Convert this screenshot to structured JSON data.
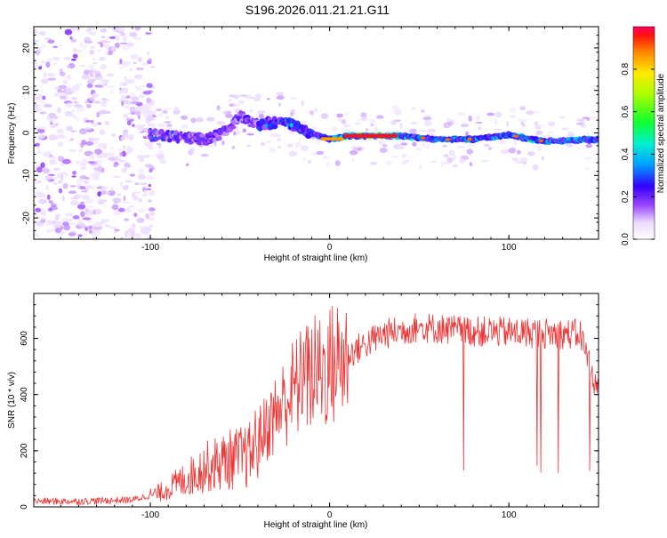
{
  "figure": {
    "title": "S196.2026.011.21.21.G11"
  },
  "chart_data": [
    {
      "type": "heatmap",
      "title": "S196.2026.011.21.21.G11",
      "xlabel": "Height of straight line (km)",
      "ylabel": "Frequency (Hz)",
      "xlim": [
        -165,
        150
      ],
      "ylim": [
        -25,
        25
      ],
      "xticks": [
        -100,
        0,
        100
      ],
      "yticks": [
        -20,
        -10,
        0,
        10,
        20
      ],
      "colorbar": {
        "label": "Normalized spectral amplitude",
        "range": [
          0,
          1
        ],
        "ticks": [
          "0.0",
          "0.2",
          "0.4",
          "0.6",
          "0.8"
        ],
        "tick_values": [
          0,
          0.2,
          0.4,
          0.6,
          0.8
        ]
      },
      "ridge": [
        {
          "x": -100,
          "y": -0.5
        },
        {
          "x": -85,
          "y": -1.0
        },
        {
          "x": -70,
          "y": -1.5
        },
        {
          "x": -60,
          "y": 0.0
        },
        {
          "x": -50,
          "y": 4.0
        },
        {
          "x": -40,
          "y": 2.0
        },
        {
          "x": -25,
          "y": 2.5
        },
        {
          "x": -10,
          "y": 0.0
        },
        {
          "x": 0,
          "y": -1.5
        },
        {
          "x": 10,
          "y": -0.7
        },
        {
          "x": 40,
          "y": -0.7
        },
        {
          "x": 60,
          "y": -1.5
        },
        {
          "x": 80,
          "y": -1.5
        },
        {
          "x": 100,
          "y": -0.5
        },
        {
          "x": 120,
          "y": -2.0
        },
        {
          "x": 150,
          "y": -1.5
        }
      ]
    },
    {
      "type": "line",
      "xlabel": "Height of straight line (km)",
      "ylabel": "SNR (10 * v/v)",
      "xlim": [
        -165,
        150
      ],
      "ylim": [
        0,
        760
      ],
      "xticks": [
        -100,
        0,
        100
      ],
      "yticks": [
        0,
        200,
        400,
        600
      ],
      "series": [
        {
          "name": "SNR",
          "color": "#ee3333",
          "trend": [
            {
              "x": -165,
              "y": 20
            },
            {
              "x": -140,
              "y": 20
            },
            {
              "x": -110,
              "y": 25
            },
            {
              "x": -95,
              "y": 50
            },
            {
              "x": -80,
              "y": 100
            },
            {
              "x": -70,
              "y": 140
            },
            {
              "x": -55,
              "y": 170
            },
            {
              "x": -45,
              "y": 180
            },
            {
              "x": -38,
              "y": 260
            },
            {
              "x": -30,
              "y": 330
            },
            {
              "x": -20,
              "y": 420
            },
            {
              "x": -10,
              "y": 470
            },
            {
              "x": 0,
              "y": 500
            },
            {
              "x": 10,
              "y": 540
            },
            {
              "x": 20,
              "y": 580
            },
            {
              "x": 30,
              "y": 615
            },
            {
              "x": 50,
              "y": 640
            },
            {
              "x": 80,
              "y": 625
            },
            {
              "x": 110,
              "y": 620
            },
            {
              "x": 140,
              "y": 615
            },
            {
              "x": 150,
              "y": 400
            }
          ]
        }
      ]
    }
  ]
}
